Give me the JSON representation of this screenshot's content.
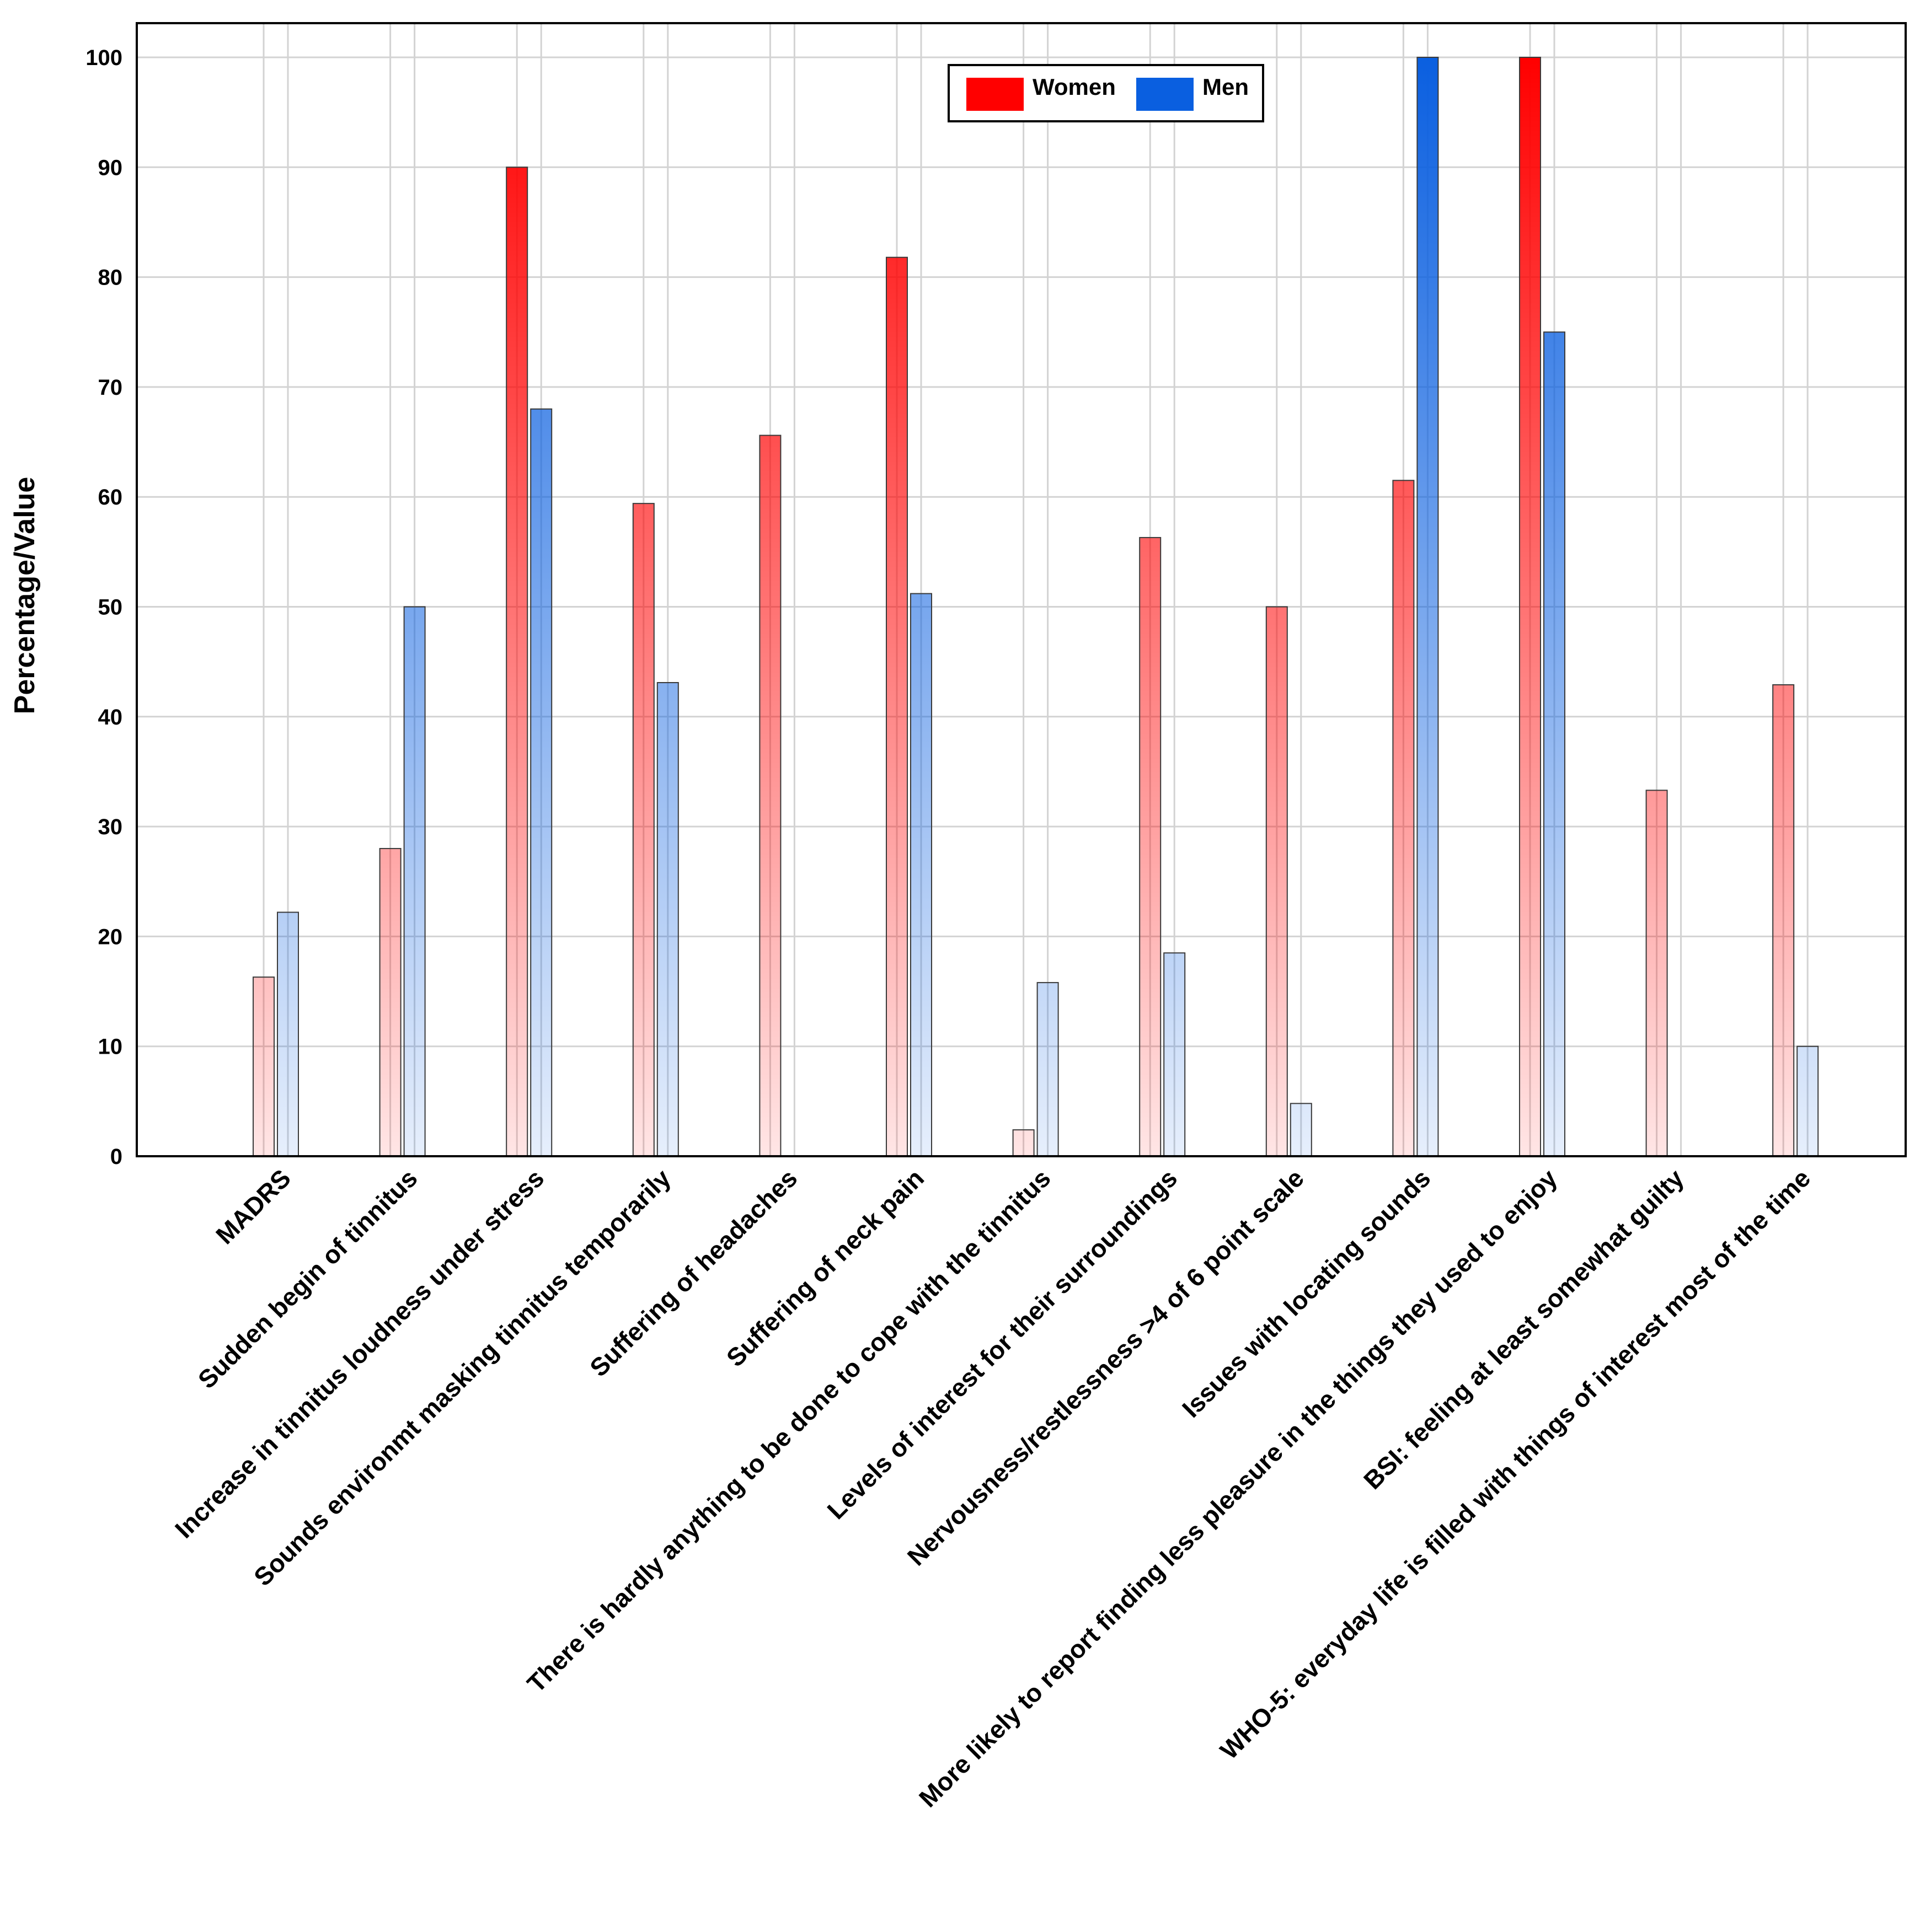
{
  "chart_data": {
    "type": "bar",
    "title": "",
    "xlabel": "",
    "ylabel": "Percentage/Value",
    "ylim": [
      0,
      100
    ],
    "yticks": [
      0,
      10,
      20,
      30,
      40,
      50,
      60,
      70,
      80,
      90,
      100
    ],
    "grid": true,
    "legend_position": "top-center",
    "categories": [
      "MADRS",
      "Sudden begin of tinnitus",
      "Increase in tinnitus loudness under stress",
      "Sounds environmt masking tinnitus temporarily",
      "Suffering of headaches",
      "Suffering of neck pain",
      "There is hardly anything to be done to cope with the tinnitus",
      "Levels of interest for their surroundings",
      "Nervousness/restlessness >4 of 6 point scale",
      "Issues with locating sounds",
      "More likely to report finding less pleasure in the things they used to enjoy",
      "BSI: feeling at least somewhat guilty",
      "WHO-5: everyday life is filled with things of interest most of the time"
    ],
    "series": [
      {
        "name": "Women",
        "color": "#ff0000",
        "values": [
          16.3,
          28,
          90,
          59.4,
          65.6,
          81.8,
          2.4,
          56.3,
          50,
          61.5,
          100,
          33.3,
          42.9
        ]
      },
      {
        "name": "Men",
        "color": "#0a5fe0",
        "values": [
          22.2,
          50,
          68,
          43.1,
          null,
          51.2,
          15.8,
          18.5,
          4.8,
          100,
          75,
          null,
          10
        ]
      }
    ]
  }
}
